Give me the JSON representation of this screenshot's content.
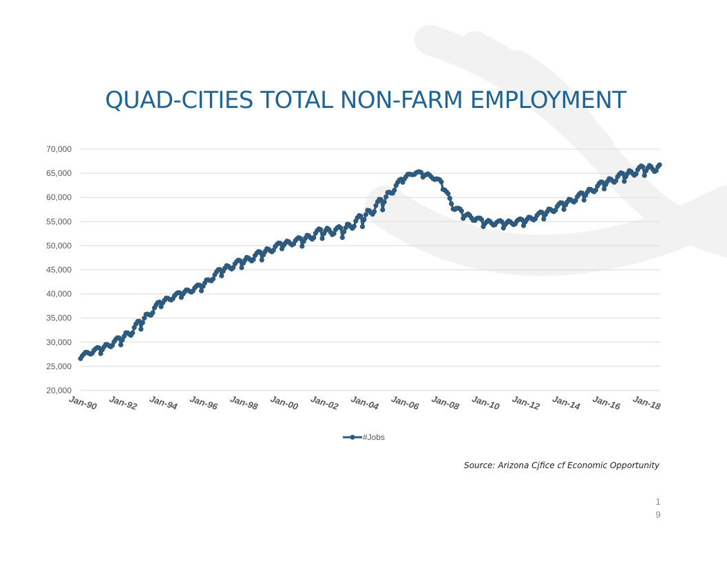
{
  "page": {
    "source_note": "Source: Arizona Cjfice cf Economic Opportunity",
    "page_number_line1": "1",
    "page_number_line2": "9"
  },
  "colors": {
    "series": "#2e5a7e",
    "title": "#1f6496",
    "gridline": "#d9d9d9",
    "watermark": "#f2f2f2"
  },
  "chart_data": {
    "type": "line",
    "title": "QUAD-CITIES TOTAL NON-FARM EMPLOYMENT",
    "xlabel": "",
    "ylabel": "",
    "ylim": [
      20000,
      70000
    ],
    "yticks": [
      20000,
      25000,
      30000,
      35000,
      40000,
      45000,
      50000,
      55000,
      60000,
      65000,
      70000
    ],
    "ytick_labels": [
      "20,000",
      "25,000",
      "30,000",
      "35,000",
      "40,000",
      "45,000",
      "50,000",
      "55,000",
      "60,000",
      "65,000",
      "70,000"
    ],
    "xlim": [
      1990.0,
      2018.75
    ],
    "xtick_positions": [
      1990,
      1992,
      1994,
      1996,
      1998,
      2000,
      2002,
      2004,
      2006,
      2008,
      2010,
      2012,
      2014,
      2016,
      2018
    ],
    "xtick_labels": [
      "Jan-90",
      "Jan-92",
      "Jan-94",
      "Jan-96",
      "Jan-98",
      "Jan-00",
      "Jan-02",
      "Jan-04",
      "Jan-06",
      "Jan-08",
      "Jan-10",
      "Jan-12",
      "Jan-14",
      "Jan-16",
      "Jan-18"
    ],
    "legend": "bottom-center",
    "grid": true,
    "series": [
      {
        "name": "#Jobs",
        "marker": "circle",
        "frequency": "monthly",
        "anchor_x": [
          1990,
          1991,
          1992,
          1992.5,
          1993,
          1994,
          1995,
          1996,
          1997,
          1998,
          1999,
          2000,
          2001,
          2002,
          2003,
          2004,
          2005,
          2006,
          2006.5,
          2007,
          2007.5,
          2008,
          2008.5,
          2009,
          2010,
          2011,
          2012,
          2013,
          2014,
          2015,
          2016,
          2017,
          2018,
          2018.75
        ],
        "anchor_y": [
          27200,
          28500,
          30500,
          32000,
          34000,
          38200,
          40000,
          41500,
          44800,
          46500,
          48200,
          50200,
          51000,
          52800,
          53000,
          55500,
          59000,
          63800,
          65000,
          64800,
          64200,
          62500,
          58000,
          56500,
          54800,
          54500,
          55000,
          56500,
          58500,
          60500,
          62800,
          64500,
          65800,
          66000
        ],
        "seasonal_amplitude": [
          900,
          1300,
          1600,
          1900,
          2000,
          1300,
          1100,
          1300,
          1600,
          1600,
          1800,
          1300,
          1700,
          2000,
          2000,
          2400,
          2400,
          1000,
          1000,
          900,
          1000,
          1300,
          1300,
          1300,
          1300,
          1300,
          1300,
          1500,
          1500,
          1600,
          1600,
          1800,
          1900,
          1900
        ],
        "seasonal_pattern_by_month": [
          -0.65,
          -0.15,
          0.15,
          0.4,
          0.25,
          -0.05,
          -0.3,
          -0.2,
          0.2,
          0.4,
          0.5,
          0.35
        ]
      }
    ]
  }
}
